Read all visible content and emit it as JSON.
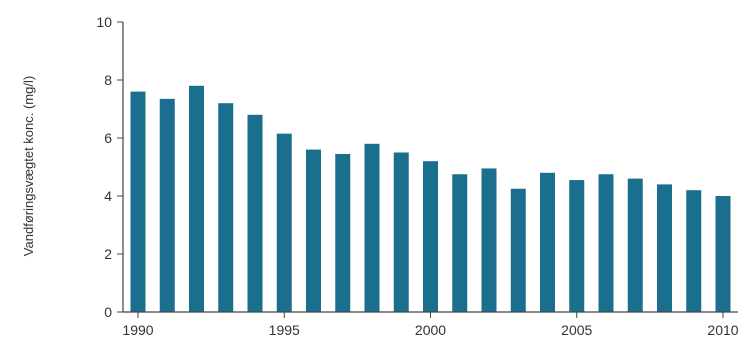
{
  "chart_data": {
    "type": "bar",
    "title": "",
    "xlabel": "",
    "ylabel": "Vandføringsvægtet konc. (mg/l)",
    "categories": [
      "1990",
      "1991",
      "1992",
      "1993",
      "1994",
      "1995",
      "1996",
      "1997",
      "1998",
      "1999",
      "2000",
      "2001",
      "2002",
      "2003",
      "2004",
      "2005",
      "2006",
      "2007",
      "2008",
      "2009",
      "2010"
    ],
    "values": [
      7.6,
      7.35,
      7.8,
      7.2,
      6.8,
      6.15,
      5.6,
      5.45,
      5.8,
      5.5,
      5.2,
      4.75,
      4.95,
      4.25,
      4.8,
      4.55,
      4.75,
      4.6,
      4.4,
      4.2,
      4.0
    ],
    "x_tick_labels": [
      "1990",
      "1995",
      "2000",
      "2005",
      "2010"
    ],
    "y_ticks": [
      0,
      2,
      4,
      6,
      8,
      10
    ],
    "y_tick_labels": [
      "0",
      "2",
      "4",
      "6",
      "8",
      "10"
    ],
    "ylim": [
      0,
      10
    ],
    "grid": false,
    "legend": "none",
    "bar_color": "#1a6e8e",
    "axis_color": "#444444"
  }
}
